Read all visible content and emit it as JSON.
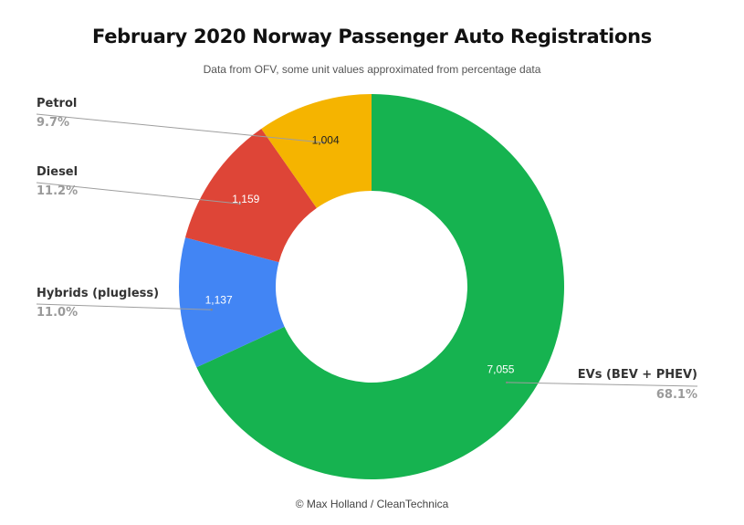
{
  "chart_data": {
    "type": "pie",
    "title": "February 2020 Norway Passenger Auto Registrations",
    "subtitle": "Data from OFV, some unit values approximated from percentage data",
    "footer": "© Max Holland / CleanTechnica",
    "categories": [
      "EVs (BEV + PHEV)",
      "Hybrids (plugless)",
      "Diesel",
      "Petrol"
    ],
    "values": [
      7055,
      1137,
      1159,
      1004
    ],
    "value_labels": [
      "7,055",
      "1,137",
      "1,159",
      "1,004"
    ],
    "percent_labels": [
      "68.1%",
      "11.0%",
      "11.2%",
      "9.7%"
    ],
    "colors": [
      "#16b350",
      "#4285f4",
      "#de4537",
      "#f5b400"
    ],
    "value_label_colors": [
      "#ffffff",
      "#ffffff",
      "#ffffff",
      "#222222"
    ],
    "donut": true,
    "legend": "none",
    "labels_outside": true
  }
}
